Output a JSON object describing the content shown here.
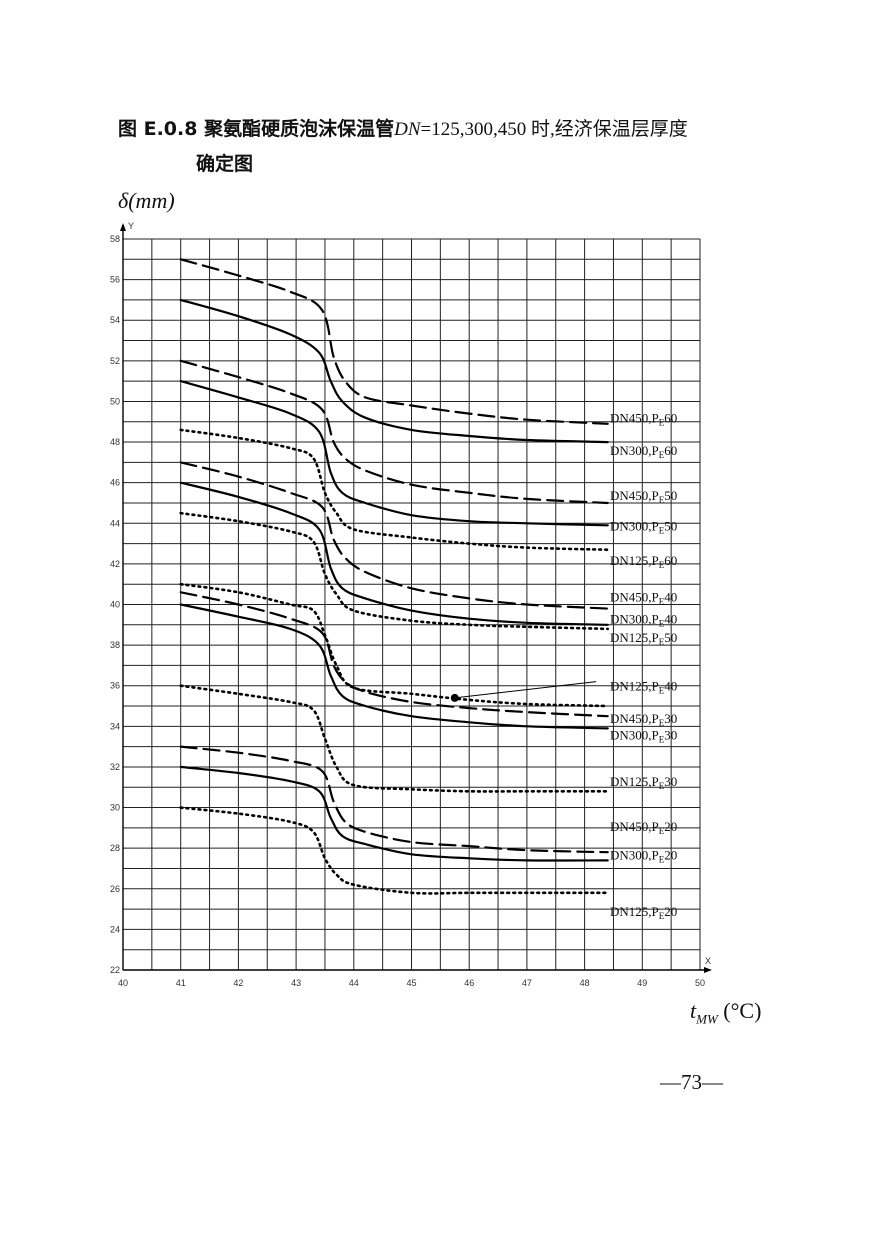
{
  "page": {
    "title_line1_prefix": "图 E.0.8 聚氨酯硬质泡沫保温管",
    "title_line1_dn": "DN",
    "title_line1_values": "=125,300,450 时,经济保温层厚度",
    "title_line2": "确定图",
    "page_number": "—73—"
  },
  "chart_data": {
    "type": "line",
    "ylabel": "δ(mm)",
    "xlabel": "t_MW (°C)",
    "xlabel_main": "t",
    "xlabel_sub": "MW",
    "xlabel_unit": "(°C)",
    "x_axis_tag": "X",
    "y_axis_tag": "Y",
    "xlim": [
      40,
      50
    ],
    "ylim": [
      22,
      58
    ],
    "x_ticks": [
      40,
      41,
      42,
      43,
      44,
      45,
      46,
      47,
      48,
      49,
      50
    ],
    "y_ticks": [
      22,
      24,
      26,
      28,
      30,
      32,
      34,
      36,
      38,
      40,
      42,
      44,
      46,
      48,
      50,
      52,
      54,
      56,
      58
    ],
    "grid": true,
    "series": [
      {
        "name": "DN450,PE60",
        "style": "dashed",
        "x": [
          41,
          42,
          42.9,
          43.45,
          43.65,
          43.85,
          44.2,
          45,
          46,
          47,
          48.4
        ],
        "y": [
          57,
          56.2,
          55.4,
          54.5,
          52.2,
          51,
          50.2,
          49.8,
          49.4,
          49.1,
          48.9
        ]
      },
      {
        "name": "DN300,PE60",
        "style": "solid",
        "x": [
          41,
          42,
          42.9,
          43.4,
          43.6,
          43.8,
          44.2,
          45,
          46,
          47,
          48.4
        ],
        "y": [
          55,
          54.2,
          53.3,
          52.4,
          51,
          50,
          49.2,
          48.6,
          48.3,
          48.1,
          48
        ]
      },
      {
        "name": "DN450,PE50",
        "style": "dashed",
        "x": [
          41,
          42,
          42.9,
          43.45,
          43.65,
          43.85,
          44.2,
          45,
          46,
          47,
          48.4
        ],
        "y": [
          52,
          51.2,
          50.4,
          49.6,
          48,
          47.2,
          46.6,
          45.9,
          45.5,
          45.2,
          45
        ]
      },
      {
        "name": "DN300,PE50",
        "style": "solid",
        "x": [
          41,
          42,
          42.9,
          43.4,
          43.6,
          43.8,
          44.2,
          45,
          46,
          47,
          48.4
        ],
        "y": [
          51,
          50.2,
          49.4,
          48.5,
          46.5,
          45.5,
          45,
          44.4,
          44.1,
          44,
          43.9
        ]
      },
      {
        "name": "DN125,PE60",
        "style": "dotted",
        "x": [
          41,
          42,
          42.9,
          43.3,
          43.5,
          43.7,
          44,
          45,
          46,
          47,
          48.4
        ],
        "y": [
          48.6,
          48.2,
          47.7,
          47.2,
          45.5,
          44.5,
          43.7,
          43.3,
          43,
          42.8,
          42.7
        ]
      },
      {
        "name": "DN450,PE40",
        "style": "dashed",
        "x": [
          41,
          42,
          42.9,
          43.45,
          43.65,
          43.85,
          44.2,
          45,
          46,
          47,
          48.4
        ],
        "y": [
          47,
          46.3,
          45.5,
          44.8,
          43.2,
          42.3,
          41.6,
          40.8,
          40.3,
          40,
          39.8
        ]
      },
      {
        "name": "DN300,PE40",
        "style": "solid",
        "x": [
          41,
          42,
          42.9,
          43.4,
          43.6,
          43.8,
          44.2,
          45,
          46,
          47,
          48.4
        ],
        "y": [
          46,
          45.3,
          44.5,
          43.7,
          41.8,
          40.8,
          40.3,
          39.7,
          39.3,
          39.1,
          39
        ]
      },
      {
        "name": "DN125,PE50",
        "style": "dotted",
        "x": [
          41,
          42,
          42.9,
          43.3,
          43.5,
          43.7,
          44,
          45,
          46,
          47,
          48.4
        ],
        "y": [
          44.5,
          44.1,
          43.6,
          43.1,
          41.5,
          40.5,
          39.7,
          39.2,
          39,
          38.9,
          38.8
        ]
      },
      {
        "name": "DN125,PE40",
        "style": "dotted",
        "x": [
          41,
          42,
          42.9,
          43.3,
          43.5,
          43.7,
          44,
          45,
          46,
          47,
          48.4
        ],
        "y": [
          41,
          40.6,
          40,
          39.7,
          38.5,
          37,
          35.9,
          35.6,
          35.3,
          35.1,
          35
        ]
      },
      {
        "name": "DN450,PE30",
        "style": "dashed",
        "x": [
          41,
          42,
          42.9,
          43.45,
          43.65,
          43.85,
          44.2,
          45,
          46,
          47,
          48.4
        ],
        "y": [
          40.6,
          40,
          39.3,
          38.6,
          37,
          36.2,
          35.7,
          35.2,
          34.9,
          34.7,
          34.5
        ]
      },
      {
        "name": "DN300,PE30",
        "style": "solid",
        "x": [
          41,
          42,
          42.9,
          43.4,
          43.6,
          43.8,
          44.2,
          45,
          46,
          47,
          48.4
        ],
        "y": [
          40,
          39.4,
          38.8,
          38,
          36.5,
          35.5,
          35,
          34.5,
          34.2,
          34,
          33.9
        ]
      },
      {
        "name": "DN125,PE30",
        "style": "dotted",
        "x": [
          41,
          42,
          42.9,
          43.3,
          43.5,
          43.7,
          44,
          45,
          46,
          47,
          48.4
        ],
        "y": [
          36,
          35.6,
          35.2,
          34.8,
          33.4,
          32,
          31.1,
          30.9,
          30.8,
          30.8,
          30.8
        ]
      },
      {
        "name": "DN450,PE20",
        "style": "dashed",
        "x": [
          41,
          42,
          42.9,
          43.45,
          43.65,
          43.85,
          44.2,
          45,
          46,
          47,
          48.4
        ],
        "y": [
          33,
          32.7,
          32.3,
          31.8,
          30.3,
          29.3,
          28.8,
          28.3,
          28.1,
          27.9,
          27.8
        ]
      },
      {
        "name": "DN300,PE20",
        "style": "solid",
        "x": [
          41,
          42,
          42.9,
          43.4,
          43.6,
          43.8,
          44.2,
          45,
          46,
          47,
          48.4
        ],
        "y": [
          32,
          31.7,
          31.3,
          30.8,
          29.5,
          28.6,
          28.2,
          27.7,
          27.5,
          27.4,
          27.4
        ]
      },
      {
        "name": "DN125,PE20",
        "style": "dotted",
        "x": [
          41,
          42,
          42.9,
          43.3,
          43.5,
          43.7,
          44,
          45,
          46,
          47,
          48.4
        ],
        "y": [
          30,
          29.7,
          29.3,
          28.8,
          27.5,
          26.7,
          26.2,
          25.8,
          25.8,
          25.8,
          25.8
        ]
      }
    ],
    "labels": [
      {
        "text": "DN450,PE60",
        "main": "DN450,P",
        "sub": "E",
        "tail": "60",
        "y": 49.2
      },
      {
        "text": "DN300,PE60",
        "main": "DN300,P",
        "sub": "E",
        "tail": "60",
        "y": 47.6
      },
      {
        "text": "DN450,PE50",
        "main": "DN450,P",
        "sub": "E",
        "tail": "50",
        "y": 45.4
      },
      {
        "text": "DN300,PE50",
        "main": "DN300,P",
        "sub": "E",
        "tail": "50",
        "y": 43.9
      },
      {
        "text": "DN125,PE60",
        "main": "DN125,P",
        "sub": "E",
        "tail": "60",
        "y": 42.2
      },
      {
        "text": "DN450,PE40",
        "main": "DN450,P",
        "sub": "E",
        "tail": "40",
        "y": 40.4
      },
      {
        "text": "DN300,PE40",
        "main": "DN300,P",
        "sub": "E",
        "tail": "40",
        "y": 39.3
      },
      {
        "text": "DN125,PE50",
        "main": "DN125,P",
        "sub": "E",
        "tail": "50",
        "y": 38.4
      },
      {
        "text": "DN125,PE40",
        "main": "DN125,P",
        "sub": "E",
        "tail": "40",
        "y": 36.0
      },
      {
        "text": "DN450,PE30",
        "main": "DN450,P",
        "sub": "E",
        "tail": "30",
        "y": 34.4
      },
      {
        "text": "DN300,PE30",
        "main": "DN300,P",
        "sub": "E",
        "tail": "30",
        "y": 33.6
      },
      {
        "text": "DN125,PE30",
        "main": "DN125,P",
        "sub": "E",
        "tail": "30",
        "y": 31.3
      },
      {
        "text": "DN450,PE20",
        "main": "DN450,P",
        "sub": "E",
        "tail": "20",
        "y": 29.1
      },
      {
        "text": "DN300,PE20",
        "main": "DN300,P",
        "sub": "E",
        "tail": "20",
        "y": 27.7
      },
      {
        "text": "DN125,PE20",
        "main": "DN125,P",
        "sub": "E",
        "tail": "20",
        "y": 24.9
      }
    ],
    "marker": {
      "x": 45.75,
      "y": 35.4,
      "pointer_to": {
        "x": 48.2,
        "y": 36.2
      }
    }
  }
}
